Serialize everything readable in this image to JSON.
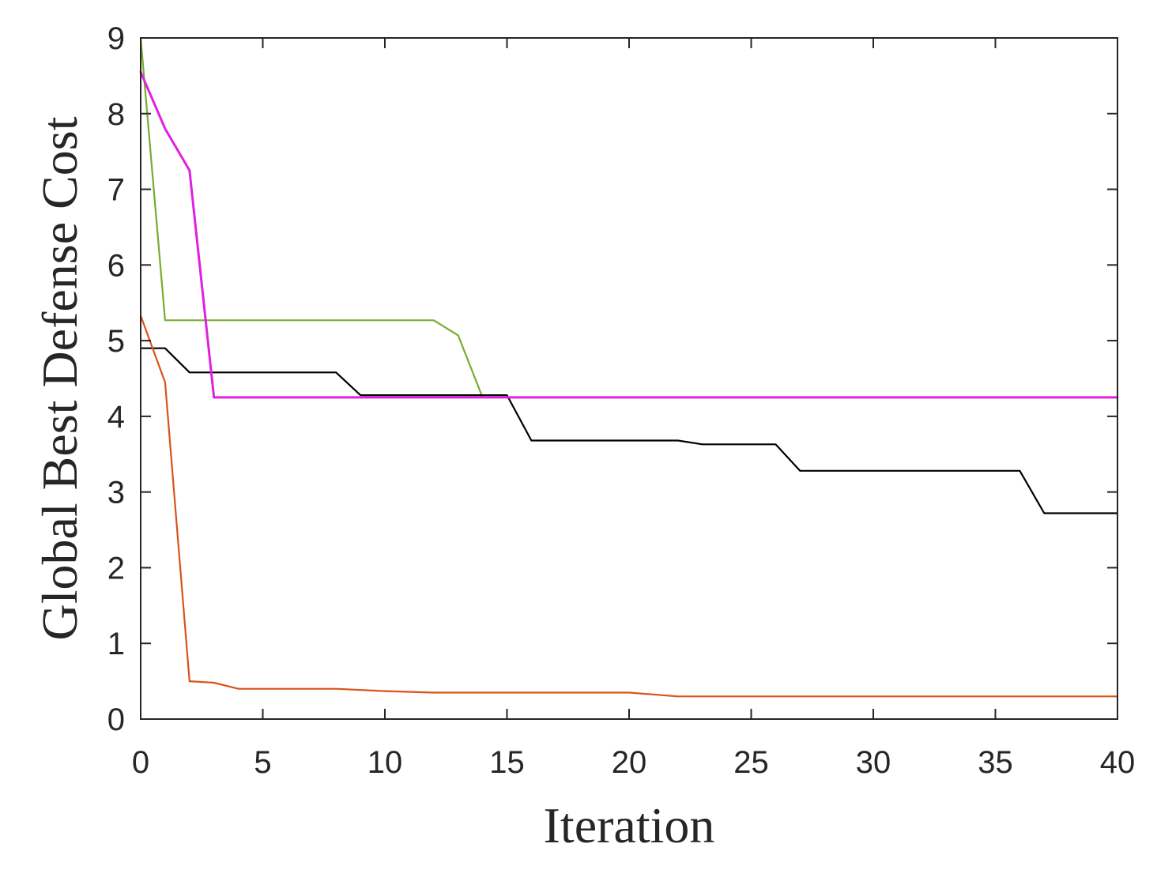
{
  "chart_data": {
    "type": "line",
    "title": "",
    "xlabel": "Iteration",
    "ylabel": "Global Best Defense Cost",
    "xlim": [
      0,
      40
    ],
    "ylim": [
      0,
      9
    ],
    "xticks": [
      0,
      5,
      10,
      15,
      20,
      25,
      30,
      35,
      40
    ],
    "yticks": [
      0,
      1,
      2,
      3,
      4,
      5,
      6,
      7,
      8,
      9
    ],
    "xtick_labels": [
      "0",
      "5",
      "10",
      "15",
      "20",
      "25",
      "30",
      "35",
      "40"
    ],
    "ytick_labels": [
      "0",
      "1",
      "2",
      "3",
      "4",
      "5",
      "6",
      "7",
      "8",
      "9"
    ],
    "grid": false,
    "legend": "none",
    "series": [
      {
        "color": "#77ac30",
        "points": [
          [
            0,
            9.0
          ],
          [
            1,
            5.27
          ],
          [
            12,
            5.27
          ],
          [
            13,
            5.07
          ],
          [
            14,
            4.25
          ],
          [
            40,
            4.25
          ]
        ]
      },
      {
        "color": "#000000",
        "points": [
          [
            0,
            4.9
          ],
          [
            1,
            4.9
          ],
          [
            2,
            4.58
          ],
          [
            8,
            4.58
          ],
          [
            9,
            4.28
          ],
          [
            15,
            4.28
          ],
          [
            16,
            3.68
          ],
          [
            22,
            3.68
          ],
          [
            23,
            3.63
          ],
          [
            26,
            3.63
          ],
          [
            27,
            3.28
          ],
          [
            36,
            3.28
          ],
          [
            37,
            2.72
          ],
          [
            40,
            2.72
          ]
        ]
      },
      {
        "color": "#d95319",
        "points": [
          [
            0,
            5.33
          ],
          [
            1,
            4.45
          ],
          [
            2,
            0.5
          ],
          [
            3,
            0.48
          ],
          [
            4,
            0.4
          ],
          [
            8,
            0.4
          ],
          [
            10,
            0.37
          ],
          [
            12,
            0.35
          ],
          [
            20,
            0.35
          ],
          [
            22,
            0.3
          ],
          [
            40,
            0.3
          ]
        ]
      },
      {
        "color": "#e020e0",
        "points": [
          [
            0,
            8.55
          ],
          [
            1,
            7.8
          ],
          [
            2,
            7.25
          ],
          [
            3,
            4.25
          ],
          [
            40,
            4.25
          ]
        ]
      }
    ]
  }
}
